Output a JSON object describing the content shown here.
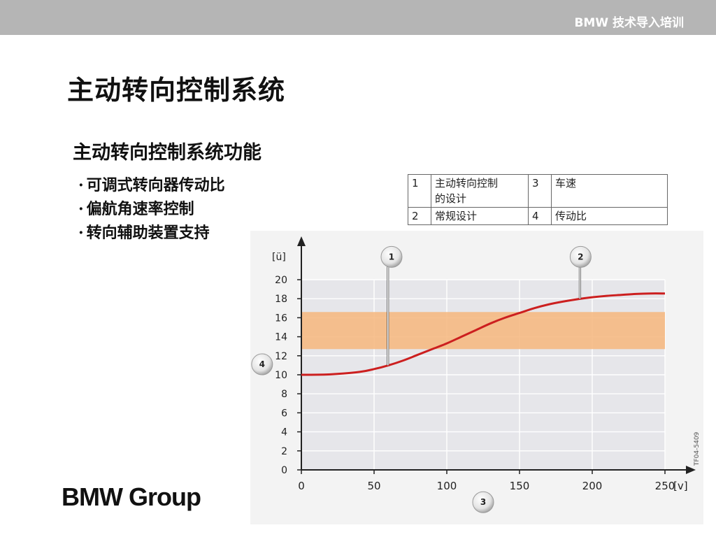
{
  "header": {
    "brand": "BMW 技术导入培训"
  },
  "page": {
    "title": "主动转向控制系统",
    "subtitle": "主动转向控制系统功能",
    "bullets": [
      "可调式转向器传动比",
      "偏航角速率控制",
      "转向辅助装置支持"
    ]
  },
  "legend_table": {
    "rows": [
      [
        {
          "num": "1",
          "text_lines": [
            "主动转向控制",
            "的设计"
          ]
        },
        {
          "num": "3",
          "text_lines": [
            "车速"
          ]
        }
      ],
      [
        {
          "num": "2",
          "text_lines": [
            "常规设计"
          ]
        },
        {
          "num": "4",
          "text_lines": [
            "传动比"
          ]
        }
      ]
    ]
  },
  "chart_data": {
    "type": "line",
    "ylabel": "[ü]",
    "xlabel": "[v]",
    "xlim": [
      0,
      250
    ],
    "ylim": [
      0,
      20
    ],
    "x_ticks": [
      0,
      50,
      100,
      150,
      200,
      250
    ],
    "y_ticks": [
      0,
      2,
      4,
      6,
      8,
      10,
      12,
      14,
      16,
      18,
      20
    ],
    "grid": true,
    "image_code": "TF04-5409",
    "band": {
      "y_from": 12.7,
      "y_to": 16.6,
      "color": "#f6b67d"
    },
    "series": [
      {
        "color": "#cc1f1f",
        "x": [
          0,
          20,
          40,
          50,
          60,
          70,
          80,
          90,
          100,
          110,
          120,
          130,
          140,
          150,
          160,
          170,
          180,
          190,
          200,
          210,
          220,
          230,
          240,
          250
        ],
        "y": [
          10.0,
          10.05,
          10.3,
          10.6,
          11.0,
          11.5,
          12.1,
          12.7,
          13.3,
          14.0,
          14.7,
          15.4,
          16.0,
          16.5,
          17.0,
          17.4,
          17.7,
          17.95,
          18.15,
          18.3,
          18.4,
          18.5,
          18.55,
          18.55
        ]
      }
    ],
    "callouts": [
      {
        "label": "1",
        "x": 60,
        "y": 11.0,
        "bubble_x": 62,
        "bubble_y": 22.4
      },
      {
        "label": "2",
        "x": 192,
        "y": 18.0,
        "bubble_x": 192,
        "bubble_y": 22.4
      },
      {
        "label": "3",
        "x": 125,
        "y": -3.4,
        "bubble_x": 125,
        "bubble_y": -3.4
      },
      {
        "label": "4",
        "x": -27,
        "y": 11.1,
        "bubble_x": -27,
        "bubble_y": 11.1
      }
    ]
  },
  "footer": {
    "logo_text": "BMW Group"
  }
}
